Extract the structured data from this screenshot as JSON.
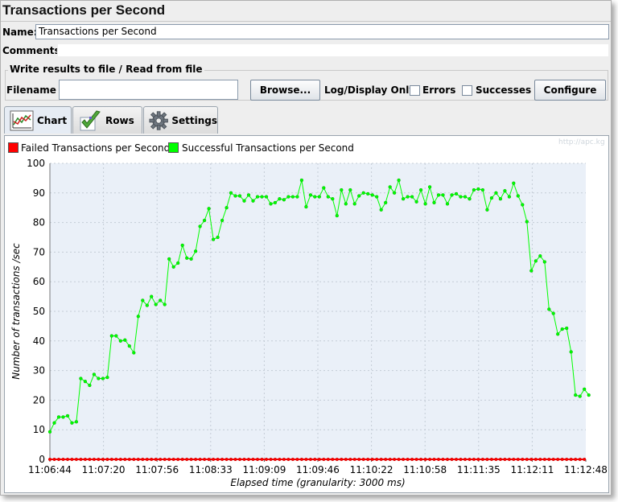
{
  "window": {
    "title": "Transactions per Second"
  },
  "form": {
    "name_label": "Name:",
    "name_value": "Transactions per Second",
    "comments_label": "Comments:",
    "comments_value": ""
  },
  "file_group": {
    "title": "Write results to file / Read from file",
    "filename_label": "Filename",
    "filename_value": "",
    "browse_label": "Browse...",
    "log_display_label": "Log/Display Only:",
    "errors_label": "Errors",
    "errors_checked": false,
    "successes_label": "Successes",
    "successes_checked": false,
    "configure_label": "Configure"
  },
  "tabs": [
    {
      "label": "Chart",
      "icon": "chart-icon",
      "selected": true
    },
    {
      "label": "Rows",
      "icon": "checkmark-icon",
      "selected": false
    },
    {
      "label": "Settings",
      "icon": "gear-icon",
      "selected": false
    }
  ],
  "watermark": "http://apc.kg",
  "chart_data": {
    "type": "line",
    "title": "",
    "xlabel": "Elapsed time (granularity: 3000 ms)",
    "ylabel": "Number of transactions /sec",
    "ylim": [
      0,
      100
    ],
    "yticks": [
      0,
      10,
      20,
      30,
      40,
      50,
      60,
      70,
      80,
      90,
      100
    ],
    "xticks": [
      "11:06:44",
      "11:07:20",
      "11:07:56",
      "11:08:33",
      "11:09:09",
      "11:09:46",
      "11:10:22",
      "11:10:58",
      "11:11:35",
      "11:12:11",
      "11:12:48"
    ],
    "x_range_sec": [
      0,
      364
    ],
    "interval_sec": 3,
    "grid": true,
    "legend_position": "top-left",
    "series": [
      {
        "name": "Failed Transactions per Second",
        "color": "#ff0000",
        "values": [
          0,
          0,
          0,
          0,
          0,
          0,
          0,
          0,
          0,
          0,
          0,
          0,
          0,
          0,
          0,
          0,
          0,
          0,
          0,
          0,
          0,
          0,
          0,
          0,
          0,
          0,
          0,
          0,
          0,
          0,
          0,
          0,
          0,
          0,
          0,
          0,
          0,
          0,
          0,
          0,
          0,
          0,
          0,
          0,
          0,
          0,
          0,
          0,
          0,
          0,
          0,
          0,
          0,
          0,
          0,
          0,
          0,
          0,
          0,
          0,
          0,
          0,
          0,
          0,
          0,
          0,
          0,
          0,
          0,
          0,
          0,
          0,
          0,
          0,
          0,
          0,
          0,
          0,
          0,
          0,
          0,
          0,
          0,
          0,
          0,
          0,
          0,
          0,
          0,
          0,
          0,
          0,
          0,
          0,
          0,
          0,
          0,
          0,
          0,
          0,
          0,
          0,
          0,
          0,
          0,
          0,
          0,
          0,
          0,
          0,
          0,
          0,
          0,
          0,
          0,
          0,
          0,
          0,
          0,
          0,
          0,
          0
        ]
      },
      {
        "name": "Successful Transactions per Second",
        "color": "#00ff00",
        "values": [
          9.3,
          12.3,
          14.3,
          14.3,
          14.7,
          12.3,
          12.7,
          27.3,
          26.3,
          25.0,
          28.7,
          27.3,
          27.3,
          27.7,
          41.7,
          41.7,
          40.0,
          40.3,
          38.3,
          36.0,
          48.3,
          53.7,
          52.0,
          55.0,
          52.3,
          53.7,
          52.3,
          67.7,
          65.0,
          66.3,
          72.3,
          68.0,
          67.7,
          70.3,
          78.7,
          80.7,
          84.7,
          74.3,
          75.0,
          80.7,
          85.0,
          90.0,
          89.0,
          89.0,
          87.3,
          89.3,
          87.3,
          88.7,
          88.7,
          88.7,
          86.3,
          86.7,
          88.0,
          87.7,
          88.7,
          88.7,
          88.7,
          94.3,
          85.3,
          89.3,
          88.7,
          88.7,
          91.7,
          88.7,
          88.0,
          82.3,
          91.0,
          86.3,
          91.0,
          86.3,
          89.0,
          90.0,
          89.7,
          89.3,
          88.7,
          84.3,
          86.7,
          92.0,
          90.0,
          94.3,
          88.0,
          88.7,
          88.7,
          87.0,
          91.0,
          86.3,
          92.0,
          86.7,
          89.3,
          89.3,
          86.3,
          89.3,
          89.7,
          88.7,
          88.7,
          88.0,
          91.0,
          91.3,
          91.0,
          84.3,
          88.3,
          90.0,
          88.0,
          90.7,
          88.7,
          93.3,
          89.0,
          86.0,
          80.3,
          63.7,
          67.0,
          68.7,
          66.7,
          50.7,
          49.3,
          42.3,
          44.0,
          44.3,
          36.3,
          21.7,
          21.3,
          23.7,
          21.7
        ]
      }
    ]
  }
}
